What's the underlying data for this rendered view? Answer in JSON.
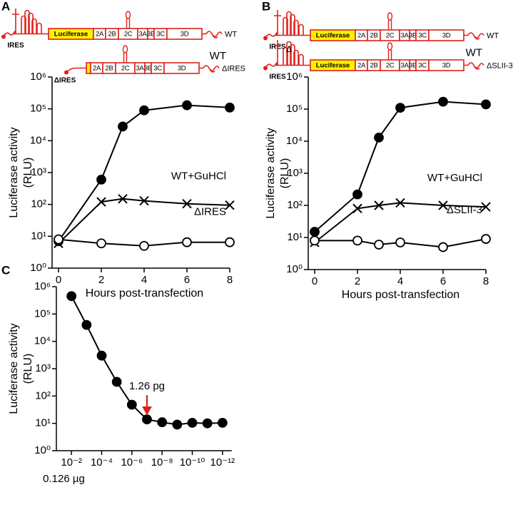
{
  "diagrams": [
    {
      "constructs": [
        {
          "name": "WT",
          "ires": "IRES",
          "reporter": "Luciferase",
          "segments": [
            "2A",
            "2B",
            "2C",
            "3A",
            "3B",
            "3C",
            "3D"
          ]
        },
        {
          "name": "ΔIRES",
          "ires": "ΔIRES",
          "segments": [
            "2A",
            "2B",
            "2C",
            "3A",
            "3B",
            "3C",
            "3D"
          ]
        }
      ]
    },
    {
      "constructs": [
        {
          "name": "WT",
          "ires": "IRES",
          "reporter": "Luciferase",
          "segments": [
            "2A",
            "2B",
            "2C",
            "3A",
            "3B",
            "3C",
            "3D"
          ]
        },
        {
          "name": "ΔSLII-3",
          "ires": "IRES",
          "deletion": "Δ",
          "reporter": "Luciferase",
          "segments": [
            "2A",
            "2B",
            "2C",
            "3A",
            "3B",
            "3C",
            "3D"
          ]
        }
      ]
    }
  ],
  "chart_data": [
    {
      "type": "line",
      "panel": "A",
      "ylabel": [
        "Luciferase activity",
        "(RLU)"
      ],
      "xlabel": "Hours post-transfection",
      "yscale": "log",
      "xlim": [
        -0.3,
        8
      ],
      "xticks": [
        0,
        2,
        4,
        6,
        8
      ],
      "ylim": [
        1,
        1000000
      ],
      "yticks": [
        {
          "value": 1,
          "label": "10⁰"
        },
        {
          "value": 10,
          "label": "10¹"
        },
        {
          "value": 100,
          "label": "10²"
        },
        {
          "value": 1000,
          "label": "10³"
        },
        {
          "value": 10000,
          "label": "10⁴"
        },
        {
          "value": 100000,
          "label": "10⁵"
        },
        {
          "value": 1000000,
          "label": "10⁶"
        }
      ],
      "series": [
        {
          "name": "WT",
          "color": "#000000",
          "marker": "filled-circle",
          "x": [
            0,
            2,
            3,
            4,
            6,
            8
          ],
          "values": [
            7,
            600,
            28000,
            90000,
            130000,
            110000
          ]
        },
        {
          "name": "WT+GuHCl",
          "color": "#000000",
          "marker": "x",
          "x": [
            0,
            2,
            3,
            4,
            6,
            8
          ],
          "values": [
            6,
            120,
            150,
            130,
            105,
            95
          ]
        },
        {
          "name": "ΔIRES",
          "color": "#000000",
          "marker": "open-circle",
          "x": [
            0,
            2,
            4,
            6,
            8
          ],
          "values": [
            8,
            6,
            5,
            6.5,
            6.5
          ]
        }
      ]
    },
    {
      "type": "line",
      "panel": "B",
      "ylabel": [
        "Luciferase activity",
        "(RLU)"
      ],
      "xlabel": "Hours post-transfection",
      "yscale": "log",
      "xlim": [
        -0.3,
        8
      ],
      "xticks": [
        0,
        2,
        4,
        6,
        8
      ],
      "ylim": [
        1,
        1000000
      ],
      "yticks": [
        {
          "value": 1,
          "label": "10⁰"
        },
        {
          "value": 10,
          "label": "10¹"
        },
        {
          "value": 100,
          "label": "10²"
        },
        {
          "value": 1000,
          "label": "10³"
        },
        {
          "value": 10000,
          "label": "10⁴"
        },
        {
          "value": 100000,
          "label": "10⁵"
        },
        {
          "value": 1000000,
          "label": "10⁶"
        }
      ],
      "series": [
        {
          "name": "WT",
          "color": "#000000",
          "marker": "filled-circle",
          "x": [
            0,
            2,
            3,
            4,
            6,
            8
          ],
          "values": [
            15,
            220,
            13000,
            110000,
            170000,
            140000
          ]
        },
        {
          "name": "WT+GuHCl",
          "color": "#000000",
          "marker": "x",
          "x": [
            0,
            2,
            3,
            4,
            6,
            8
          ],
          "values": [
            7,
            80,
            100,
            120,
            100,
            90
          ]
        },
        {
          "name": "ΔSLII-3",
          "color": "#000000",
          "marker": "open-circle",
          "x": [
            0,
            2,
            3,
            4,
            6,
            8
          ],
          "values": [
            8,
            8,
            6,
            7,
            5,
            9
          ]
        }
      ]
    },
    {
      "type": "line",
      "panel": "C",
      "ylabel": [
        "Luciferase activity",
        "(RLU)"
      ],
      "yscale": "log",
      "xscale": "log",
      "xlim": [
        0.1,
        1e-13
      ],
      "xticks": [
        {
          "value": 0.01,
          "label": "10⁻²"
        },
        {
          "value": 0.0001,
          "label": "10⁻⁴"
        },
        {
          "value": 1e-06,
          "label": "10⁻⁶"
        },
        {
          "value": 1e-08,
          "label": "10⁻⁸"
        },
        {
          "value": 1e-10,
          "label": "10⁻¹⁰"
        },
        {
          "value": 1e-12,
          "label": "10⁻¹²"
        }
      ],
      "ylim": [
        1,
        1000000
      ],
      "yticks": [
        {
          "value": 1,
          "label": "10⁰"
        },
        {
          "value": 10,
          "label": "10¹"
        },
        {
          "value": 100,
          "label": "10²"
        },
        {
          "value": 1000,
          "label": "10³"
        },
        {
          "value": 10000,
          "label": "10⁴"
        },
        {
          "value": 100000,
          "label": "10⁵"
        },
        {
          "value": 1000000,
          "label": "10⁶"
        }
      ],
      "series": [
        {
          "color": "#000000",
          "marker": "filled-circle",
          "x": [
            0.01,
            0.001,
            0.0001,
            1e-05,
            1e-06,
            1e-07,
            1e-08,
            1e-09,
            1e-10,
            1e-11,
            1e-12
          ],
          "values": [
            450000,
            40000,
            3000,
            330,
            48,
            14,
            11,
            9,
            10.5,
            10,
            10.5
          ]
        }
      ],
      "annotations": [
        {
          "text": "1.26 pg",
          "x": 1e-07,
          "y": 14,
          "arrow_color": "#e0201b"
        },
        {
          "text": "0.126 µg",
          "x": 0.01
        }
      ]
    }
  ]
}
